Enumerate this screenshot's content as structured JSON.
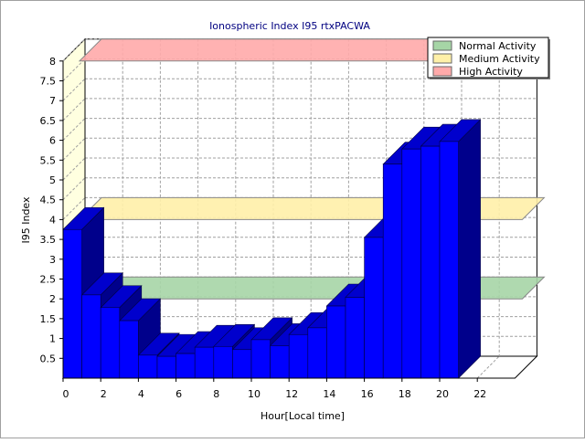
{
  "chart_data": {
    "type": "bar",
    "title": "Ionospheric Index I95 rtxPACWA",
    "xlabel": "Hour[Local time]",
    "ylabel": "I95 Index",
    "x_ticks": [
      "0",
      "2",
      "4",
      "6",
      "8",
      "10",
      "12",
      "14",
      "16",
      "18",
      "20",
      "22"
    ],
    "y_ticks": [
      "0.5",
      "1",
      "1.5",
      "2",
      "2.5",
      "3",
      "3.5",
      "4",
      "4.5",
      "5",
      "5.5",
      "6",
      "6.5",
      "7",
      "7.5",
      "8"
    ],
    "ylim": [
      0,
      8
    ],
    "xlim": [
      0,
      24
    ],
    "grid": true,
    "legend_position": "top-right",
    "hours": [
      0,
      1,
      2,
      3,
      4,
      5,
      6,
      7,
      8,
      9,
      10,
      11,
      12,
      13,
      14,
      15,
      16,
      17,
      18,
      19,
      20
    ],
    "values": [
      3.75,
      2.1,
      1.78,
      1.45,
      0.58,
      0.55,
      0.62,
      0.78,
      0.8,
      0.72,
      0.97,
      0.82,
      1.1,
      1.27,
      1.82,
      2.04,
      3.55,
      5.4,
      5.78,
      5.85,
      5.97
    ],
    "bar_color": "#0000ff",
    "activity_bands": [
      {
        "name": "Normal Activity",
        "level": 2.0,
        "color": "#a6d5a6"
      },
      {
        "name": "Medium Activity",
        "level": 4.0,
        "color": "#fff0a8"
      },
      {
        "name": "High Activity",
        "level": 8.0,
        "color": "#ffaaaa"
      }
    ]
  }
}
